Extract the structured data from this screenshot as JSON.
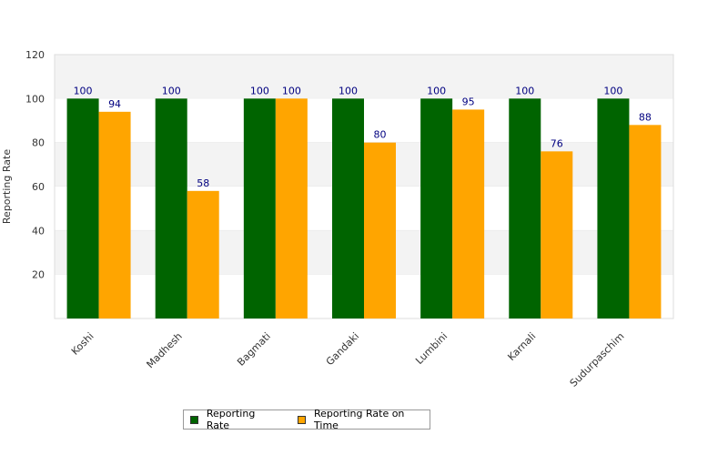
{
  "chart_data": {
    "type": "bar",
    "title": "",
    "xlabel": "",
    "ylabel": "Reporting Rate",
    "ylim": [
      0,
      120
    ],
    "yticks": [
      20,
      40,
      60,
      80,
      100,
      120
    ],
    "categories": [
      "Koshi",
      "Madhesh",
      "Bagmati",
      "Gandaki",
      "Lumbini",
      "Karnali",
      "Sudurpaschim"
    ],
    "series": [
      {
        "name": "Reporting Rate",
        "color": "#006400",
        "values": [
          100,
          100,
          100,
          100,
          100,
          100,
          100
        ]
      },
      {
        "name": "Reporting Rate on Time",
        "color": "#FFA500",
        "values": [
          94,
          58,
          100,
          80,
          95,
          76,
          88
        ]
      }
    ],
    "legend_position": "bottom-center",
    "grid": "horizontal bands"
  }
}
